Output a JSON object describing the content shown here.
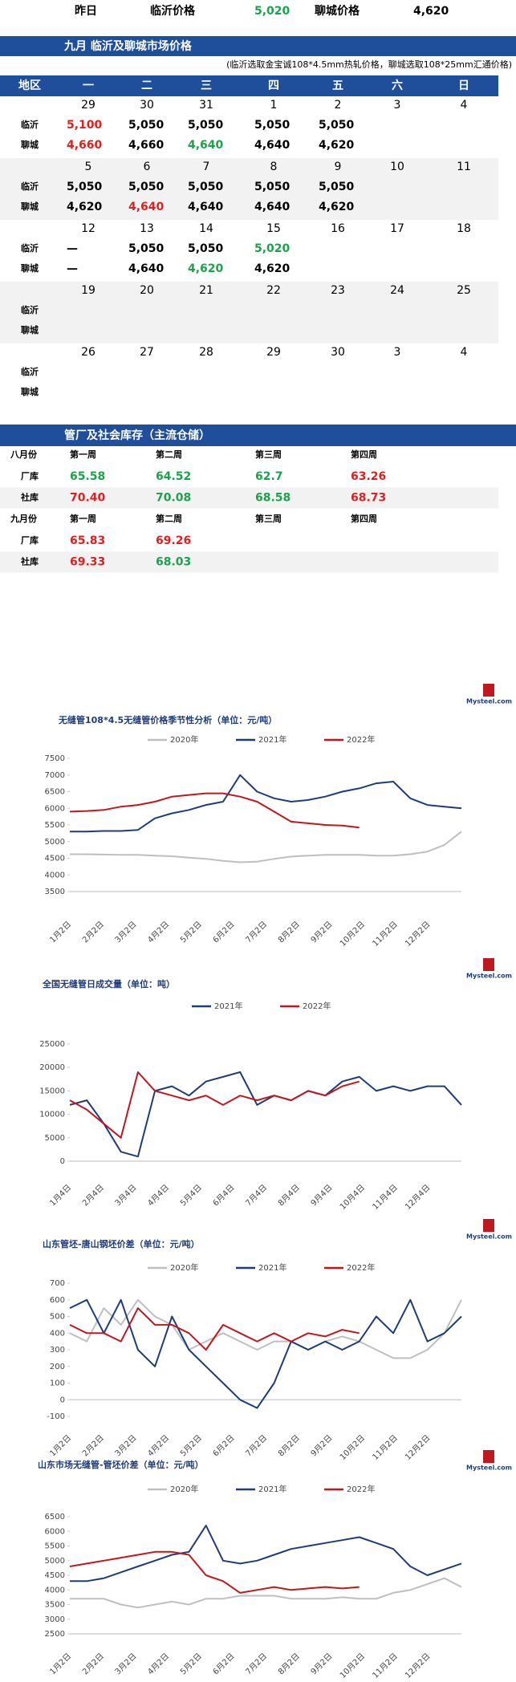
{
  "top": {
    "label": "昨日",
    "linyi_label": "临沂价格",
    "linyi": "5,020",
    "linyi_color": "#1aa34a",
    "liaocheng_label": "聊城价格",
    "liaocheng": "4,620"
  },
  "calendar": {
    "title": "九月 临沂及聊城市场价格",
    "note": "(临沂选取金宝诚108*4.5mm热轧价格，聊城选取108*25mm汇通价格)",
    "header": [
      "地区",
      "一",
      "二",
      "三",
      "四",
      "五",
      "六",
      "日"
    ],
    "row_labels": [
      "临沂",
      "聊城"
    ],
    "weeks": [
      {
        "dates": [
          29,
          30,
          31,
          1,
          2,
          3,
          4
        ],
        "linyi": [
          {
            "text": "5,100",
            "color": "#e02020"
          },
          {
            "text": "5,050",
            "color": "#000"
          },
          {
            "text": "5,050",
            "color": "#000"
          },
          {
            "text": "5,050",
            "color": "#000"
          },
          {
            "text": "5,050",
            "color": "#000"
          }
        ],
        "liaocheng": [
          {
            "text": "4,660",
            "color": "#e02020"
          },
          {
            "text": "4,660",
            "color": "#000"
          },
          {
            "text": "4,640",
            "color": "#1aa34a"
          },
          {
            "text": "4,640",
            "color": "#000"
          },
          {
            "text": "4,620",
            "color": "#000"
          }
        ]
      },
      {
        "dates": [
          5,
          6,
          7,
          8,
          9,
          10,
          11
        ],
        "linyi": [
          {
            "text": "5,050",
            "color": "#000"
          },
          {
            "text": "5,050",
            "color": "#000"
          },
          {
            "text": "5,050",
            "color": "#000"
          },
          {
            "text": "5,050",
            "color": "#000"
          },
          {
            "text": "5,050",
            "color": "#000"
          }
        ],
        "liaocheng": [
          {
            "text": "4,620",
            "color": "#000"
          },
          {
            "text": "4,640",
            "color": "#e02020"
          },
          {
            "text": "4,640",
            "color": "#000"
          },
          {
            "text": "4,640",
            "color": "#000"
          },
          {
            "text": "4,620",
            "color": "#000"
          }
        ]
      },
      {
        "dates": [
          12,
          13,
          14,
          15,
          16,
          17,
          18
        ],
        "linyi": [
          {
            "text": "—",
            "color": "#000"
          },
          {
            "text": "5,050",
            "color": "#000"
          },
          {
            "text": "5,050",
            "color": "#000"
          },
          {
            "text": "5,020",
            "color": "#1aa34a"
          }
        ],
        "liaocheng": [
          {
            "text": "—",
            "color": "#000"
          },
          {
            "text": "4,640",
            "color": "#000"
          },
          {
            "text": "4,620",
            "color": "#1aa34a"
          },
          {
            "text": "4,620",
            "color": "#000"
          }
        ]
      },
      {
        "dates": [
          19,
          20,
          21,
          22,
          23,
          24,
          25
        ],
        "linyi": [],
        "liaocheng": []
      },
      {
        "dates": [
          26,
          27,
          28,
          29,
          30,
          3,
          4
        ],
        "linyi": [],
        "liaocheng": []
      }
    ]
  },
  "inventory": {
    "title": "管厂及社会库存（主流仓储）",
    "sections": [
      {
        "label": "八月份",
        "weeks": [
          "第一周",
          "第二周",
          "第三周",
          "第四周"
        ],
        "rows": [
          {
            "label": "厂库",
            "values": [
              {
                "text": "65.58",
                "color": "#1aa34a"
              },
              {
                "text": "64.52",
                "color": "#1aa34a"
              },
              {
                "text": "62.7",
                "color": "#1aa34a"
              },
              {
                "text": "63.26",
                "color": "#e02020"
              }
            ]
          },
          {
            "label": "社库",
            "values": [
              {
                "text": "70.40",
                "color": "#e02020"
              },
              {
                "text": "70.08",
                "color": "#1aa34a"
              },
              {
                "text": "68.58",
                "color": "#1aa34a"
              },
              {
                "text": "68.73",
                "color": "#e02020"
              }
            ]
          }
        ]
      },
      {
        "label": "九月份",
        "weeks": [
          "第一周",
          "第二周",
          "第三周",
          "第四周"
        ],
        "rows": [
          {
            "label": "厂库",
            "values": [
              {
                "text": "65.83",
                "color": "#e02020"
              },
              {
                "text": "69.26",
                "color": "#e02020"
              }
            ]
          },
          {
            "label": "社库",
            "values": [
              {
                "text": "69.33",
                "color": "#e02020"
              },
              {
                "text": "68.03",
                "color": "#1aa34a"
              }
            ]
          }
        ]
      }
    ]
  },
  "charts": [
    {
      "type": "line",
      "logo": "Mysteel.com",
      "title": "无缝管108*4.5无缝管价格季节性分析（单位：元/吨）",
      "grid": false,
      "categories": [
        "1月2日",
        "2月2日",
        "3月2日",
        "4月2日",
        "5月2日",
        "6月2日",
        "7月2日",
        "8月2日",
        "9月2日",
        "10月2日",
        "11月2日",
        "12月2日"
      ],
      "ylim": [
        3500,
        7500
      ],
      "yticks": [
        3500,
        4000,
        4500,
        5000,
        5500,
        6000,
        6500,
        7000,
        7500
      ],
      "series": [
        {
          "name": "2020年",
          "color": "#bfbfbf",
          "values": [
            4620,
            4620,
            4610,
            4600,
            4600,
            4580,
            4560,
            4520,
            4480,
            4420,
            4380,
            4400,
            4480,
            4550,
            4580,
            4600,
            4600,
            4600,
            4580,
            4580,
            4620,
            4700,
            4900,
            5300
          ]
        },
        {
          "name": "2021年",
          "color": "#1f3c7a",
          "values": [
            5300,
            5300,
            5320,
            5320,
            5350,
            5700,
            5850,
            5950,
            6100,
            6200,
            7000,
            6500,
            6300,
            6200,
            6250,
            6350,
            6500,
            6600,
            6750,
            6800,
            6300,
            6100,
            6050,
            6000
          ]
        },
        {
          "name": "2022年",
          "color": "#c0181f",
          "values": [
            5900,
            5920,
            5950,
            6050,
            6100,
            6200,
            6350,
            6400,
            6450,
            6450,
            6350,
            6200,
            5900,
            5600,
            5550,
            5500,
            5480,
            5420,
            null,
            null,
            null,
            null,
            null,
            null
          ]
        }
      ]
    },
    {
      "type": "line",
      "logo": "Mysteel.com",
      "title": "全国无缝管日成交量（单位：吨）",
      "grid": false,
      "categories": [
        "1月4日",
        "2月4日",
        "3月4日",
        "4月4日",
        "5月4日",
        "6月4日",
        "7月4日",
        "8月4日",
        "9月4日",
        "10月4日",
        "11月4日",
        "12月4日"
      ],
      "ylim": [
        0,
        25000
      ],
      "yticks": [
        0,
        5000,
        10000,
        15000,
        20000,
        25000
      ],
      "series": [
        {
          "name": "2021年",
          "color": "#1f3c7a",
          "values": [
            12000,
            13000,
            8000,
            2000,
            1000,
            15000,
            16000,
            14000,
            17000,
            18000,
            19000,
            12000,
            14000,
            13000,
            15000,
            14000,
            17000,
            18000,
            15000,
            16000,
            15000,
            16000,
            16000,
            12000
          ]
        },
        {
          "name": "2022年",
          "color": "#c0181f",
          "values": [
            13000,
            11000,
            8000,
            5000,
            19000,
            15000,
            14000,
            13000,
            14000,
            12000,
            14000,
            13000,
            14000,
            13000,
            15000,
            14000,
            16000,
            17000,
            null,
            null,
            null,
            null,
            null,
            null
          ]
        }
      ]
    },
    {
      "type": "line",
      "logo": "Mysteel.com",
      "title": "山东管坯-唐山钢坯价差（单位：元/吨）",
      "grid": false,
      "categories": [
        "1月2日",
        "2月2日",
        "3月2日",
        "4月2日",
        "5月2日",
        "6月2日",
        "7月2日",
        "8月2日",
        "9月2日",
        "10月2日",
        "11月2日",
        "12月2日"
      ],
      "ylim": [
        -100,
        700
      ],
      "yticks": [
        -100,
        0,
        100,
        200,
        300,
        400,
        500,
        600,
        700
      ],
      "series": [
        {
          "name": "2020年",
          "color": "#bfbfbf",
          "values": [
            400,
            350,
            550,
            450,
            600,
            500,
            450,
            300,
            350,
            400,
            350,
            300,
            350,
            350,
            300,
            350,
            380,
            350,
            300,
            250,
            250,
            300,
            400,
            600
          ]
        },
        {
          "name": "2021年",
          "color": "#1f3c7a",
          "values": [
            550,
            600,
            400,
            600,
            300,
            200,
            500,
            300,
            200,
            100,
            0,
            -50,
            100,
            350,
            300,
            350,
            300,
            350,
            500,
            400,
            600,
            350,
            400,
            500
          ]
        },
        {
          "name": "2022年",
          "color": "#c0181f",
          "values": [
            450,
            400,
            400,
            350,
            550,
            450,
            450,
            400,
            300,
            450,
            400,
            350,
            400,
            350,
            400,
            380,
            420,
            400,
            null,
            null,
            null,
            null,
            null,
            null
          ]
        }
      ]
    },
    {
      "type": "line",
      "logo": "Mysteel.com",
      "title": "山东市场无缝管-管坯价差（单位：元/吨）",
      "grid": false,
      "categories": [
        "1月2日",
        "2月2日",
        "3月2日",
        "4月2日",
        "5月2日",
        "6月2日",
        "7月2日",
        "8月2日",
        "9月2日",
        "10月2日",
        "11月2日",
        "12月2日"
      ],
      "ylim": [
        2500,
        6500
      ],
      "yticks": [
        2500,
        3000,
        3500,
        4000,
        4500,
        5000,
        5500,
        6000,
        6500
      ],
      "series": [
        {
          "name": "2020年",
          "color": "#bfbfbf",
          "values": [
            3700,
            3700,
            3700,
            3500,
            3400,
            3500,
            3600,
            3500,
            3700,
            3700,
            3800,
            3800,
            3800,
            3700,
            3700,
            3700,
            3750,
            3700,
            3700,
            3900,
            4000,
            4200,
            4400,
            4100
          ]
        },
        {
          "name": "2021年",
          "color": "#1f3c7a",
          "values": [
            4300,
            4300,
            4400,
            4600,
            4800,
            5000,
            5200,
            5300,
            6200,
            5000,
            4900,
            5000,
            5200,
            5400,
            5500,
            5600,
            5700,
            5800,
            5600,
            5400,
            4800,
            4500,
            4700,
            4900
          ]
        },
        {
          "name": "2022年",
          "color": "#c0181f",
          "values": [
            4800,
            4900,
            5000,
            5100,
            5200,
            5300,
            5300,
            5200,
            4500,
            4300,
            3900,
            4000,
            4100,
            4000,
            4050,
            4100,
            4050,
            4100,
            null,
            null,
            null,
            null,
            null,
            null
          ]
        }
      ]
    }
  ]
}
